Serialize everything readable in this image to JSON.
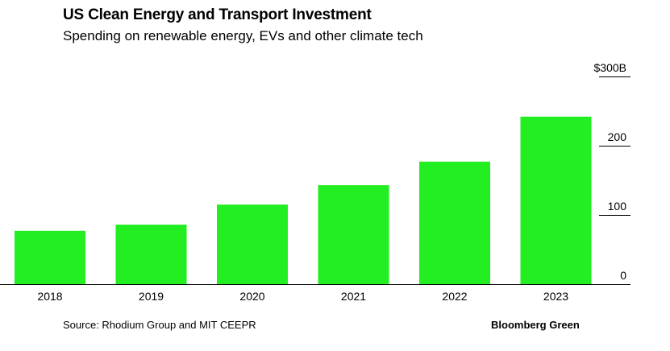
{
  "header": {
    "title": "US Clean Energy and Transport Investment",
    "subtitle": "Spending on renewable energy, EVs and other climate tech"
  },
  "footer": {
    "source": "Source: Rhodium Group and MIT CEEPR",
    "brand": "Bloomberg Green"
  },
  "colors": {
    "bar": "#22ee22",
    "axis": "#000000"
  },
  "chart_data": {
    "type": "bar",
    "title": "US Clean Energy and Transport Investment",
    "subtitle": "Spending on renewable energy, EVs and other climate tech",
    "categories": [
      "2018",
      "2019",
      "2020",
      "2021",
      "2022",
      "2023"
    ],
    "values": [
      77,
      86,
      115,
      143,
      177,
      242
    ],
    "ylim": [
      0,
      300
    ],
    "yticks": [
      0,
      100,
      200,
      300
    ],
    "ytick_labels": [
      "0",
      "100",
      "200",
      "$300B"
    ],
    "y_axis_position": "right",
    "grid": false,
    "legend": "none",
    "xlabel": "",
    "ylabel": ""
  }
}
